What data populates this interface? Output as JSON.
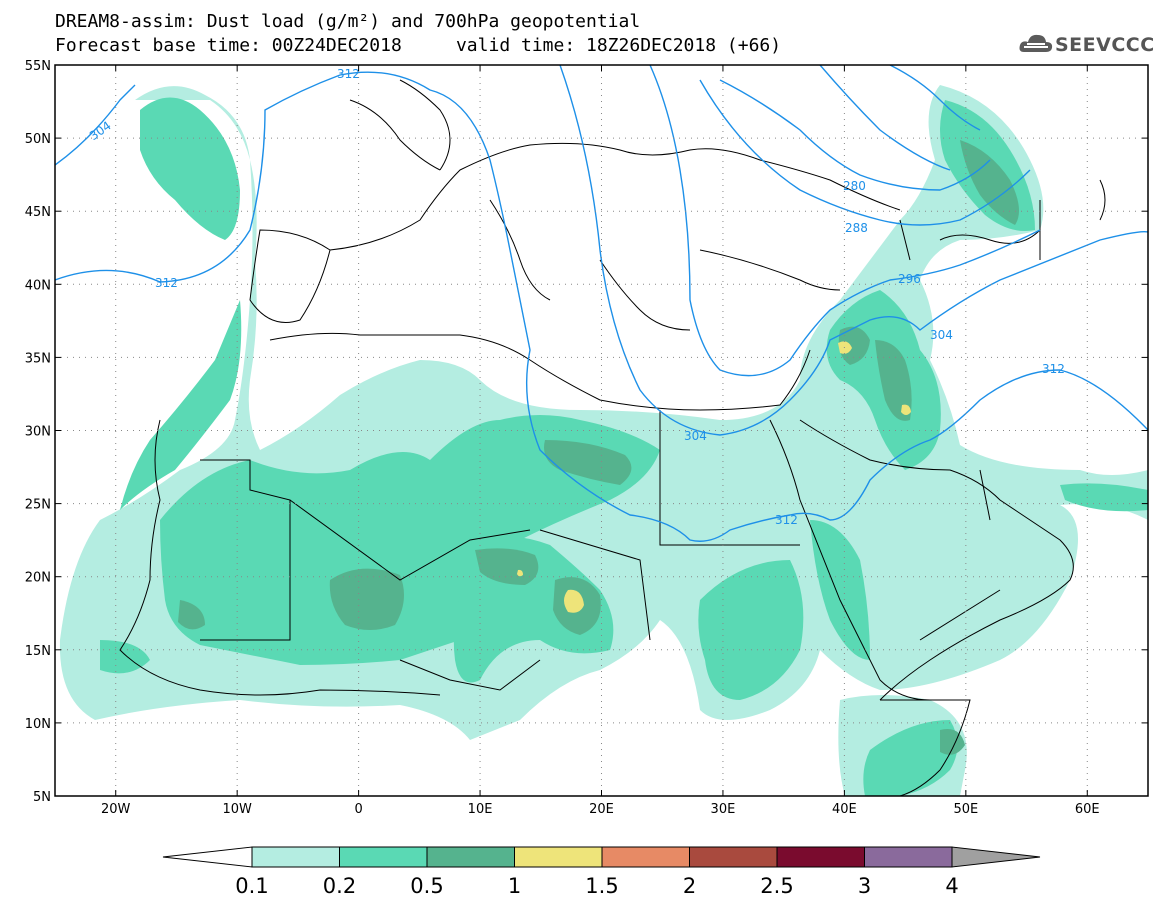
{
  "header": {
    "title_line1": "DREAM8-assim: Dust load (g/m²) and 700hPa geopotential",
    "title_line2": "Forecast base time: 00Z24DEC2018     valid time: 18Z26DEC2018 (+66)"
  },
  "logo": {
    "text": "SEEVCCC",
    "icon": "cloud-logo-icon"
  },
  "map": {
    "lat_labels": [
      "55N",
      "50N",
      "45N",
      "40N",
      "35N",
      "30N",
      "25N",
      "20N",
      "15N",
      "10N",
      "5N"
    ],
    "lon_labels": [
      "20W",
      "10W",
      "0",
      "10E",
      "20E",
      "30E",
      "40E",
      "50E",
      "60E"
    ],
    "contour_labels": [
      "312",
      "304",
      "312",
      "280",
      "288",
      "296",
      "304",
      "312",
      "304",
      "312"
    ],
    "contour_color": "#1e90e8",
    "dust_colors": {
      "light": "#b4ede1",
      "medium": "#5ad9b4",
      "dark": "#55b38e",
      "yellow": "#eee47a"
    }
  },
  "colorbar": {
    "labels": [
      "0.1",
      "0.2",
      "0.5",
      "1",
      "1.5",
      "2",
      "2.5",
      "3",
      "4"
    ],
    "colors": [
      "#ffffff",
      "#b4ede1",
      "#5ad9b4",
      "#55b38e",
      "#eee47a",
      "#e78a65",
      "#a94a3e",
      "#7a0b2e",
      "#8a6a9c",
      "#a0a0a0"
    ]
  }
}
